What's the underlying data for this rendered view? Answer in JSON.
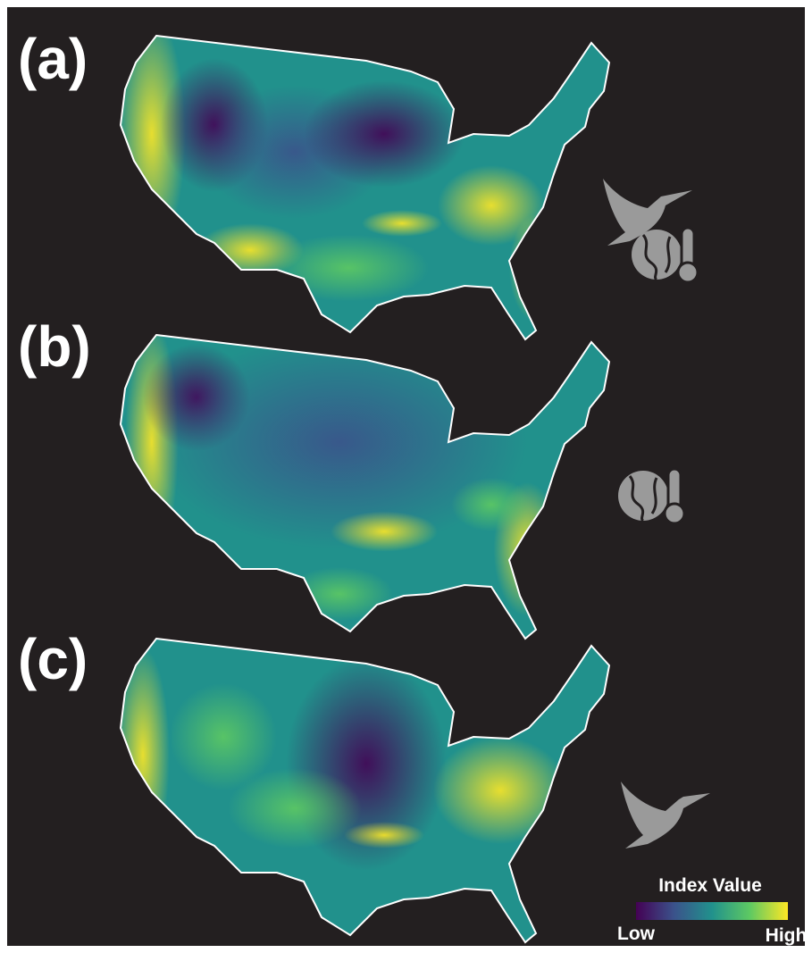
{
  "panels": [
    {
      "label": "(a)"
    },
    {
      "label": "(b)"
    },
    {
      "label": "(c)"
    }
  ],
  "legend": {
    "title": "Index Value",
    "low": "Low",
    "high": "High",
    "colors": [
      "#440154",
      "#3b528b",
      "#21918c",
      "#5ec962",
      "#fde725"
    ]
  }
}
